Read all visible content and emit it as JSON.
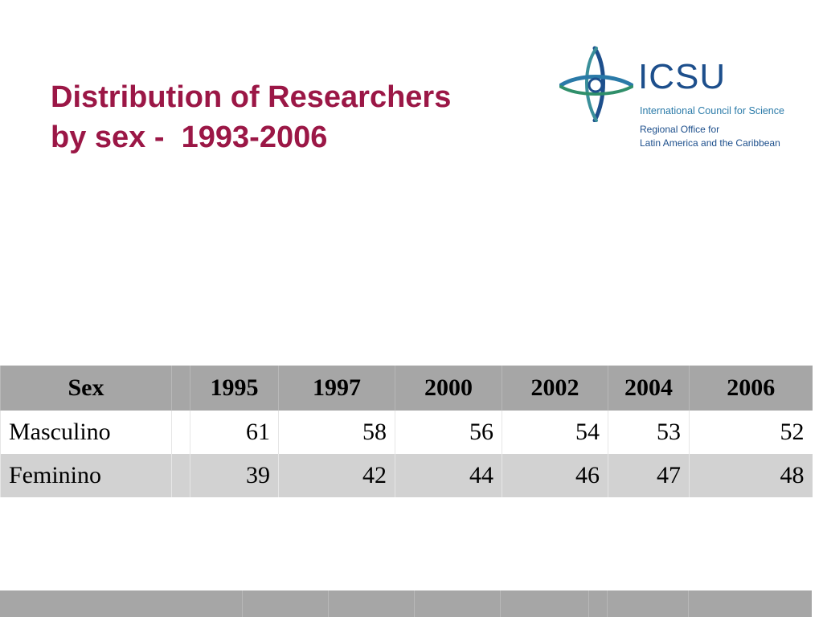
{
  "slide": {
    "title_line1": "Distribution of Researchers",
    "title_line2": "by sex -  1993-2006",
    "title_color": "#9b1746"
  },
  "logo": {
    "acronym": "ICSU",
    "full_name": "International Council for Science",
    "office_line1": "Regional Office for",
    "office_line2": "Latin America and the Caribbean",
    "brand_color": "#1d4f8c"
  },
  "table": {
    "headers": [
      "Sex",
      "",
      "1995",
      "1997",
      "2000",
      "2002",
      "2004",
      "2006"
    ],
    "rows": [
      {
        "label": "Masculino",
        "values": [
          "",
          "61",
          "58",
          "56",
          "54",
          "53",
          "52"
        ]
      },
      {
        "label": "Feminino",
        "values": [
          "",
          "39",
          "42",
          "44",
          "46",
          "47",
          "48"
        ]
      }
    ],
    "header_color": "#a6a6a6",
    "alt_row_color": "#d2d2d2"
  }
}
